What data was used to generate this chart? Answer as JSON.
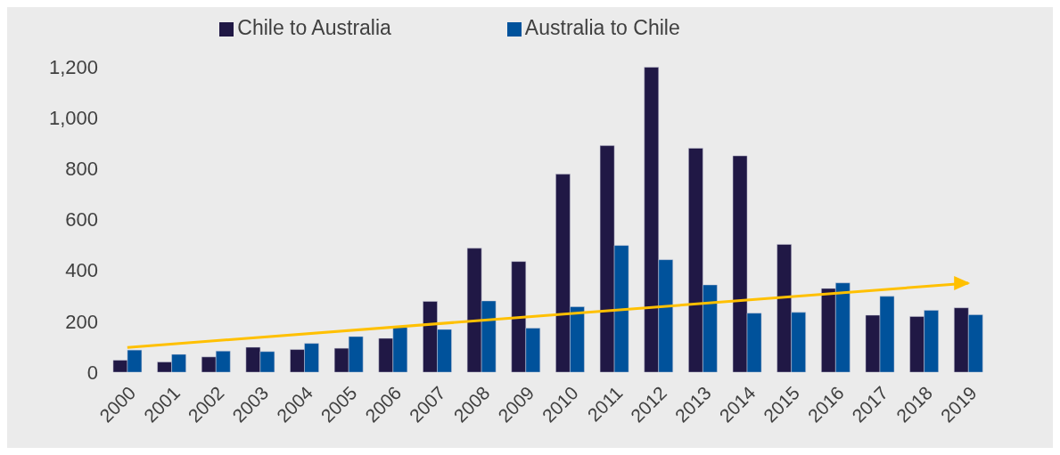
{
  "chart_data": {
    "type": "bar",
    "categories": [
      "2000",
      "2001",
      "2002",
      "2003",
      "2004",
      "2005",
      "2006",
      "2007",
      "2008",
      "2009",
      "2010",
      "2011",
      "2012",
      "2013",
      "2014",
      "2015",
      "2016",
      "2017",
      "2018",
      "2019"
    ],
    "series": [
      {
        "name": "Chile to Australia",
        "color": "#201845",
        "values": [
          47,
          40,
          60,
          98,
          89,
          94,
          133,
          278,
          487,
          435,
          778,
          890,
          1198,
          880,
          850,
          502,
          329,
          224,
          219,
          253
        ]
      },
      {
        "name": "Australia to Chile",
        "color": "#00529b",
        "values": [
          87,
          70,
          83,
          81,
          113,
          140,
          176,
          168,
          280,
          173,
          257,
          498,
          442,
          343,
          232,
          235,
          351,
          298,
          243,
          226
        ]
      },
      {
        "type": "line",
        "color": "#ffc000",
        "values": [
          97,
          null,
          null,
          null,
          null,
          null,
          null,
          null,
          null,
          null,
          null,
          null,
          null,
          null,
          null,
          null,
          null,
          null,
          null,
          350
        ]
      }
    ],
    "ylim": [
      0,
      1200
    ],
    "yticks": [
      0,
      200,
      400,
      600,
      800,
      {
        "value": 1000,
        "label": "1,000"
      },
      {
        "value": 1200,
        "label": "1,200"
      }
    ],
    "legend": "top"
  }
}
